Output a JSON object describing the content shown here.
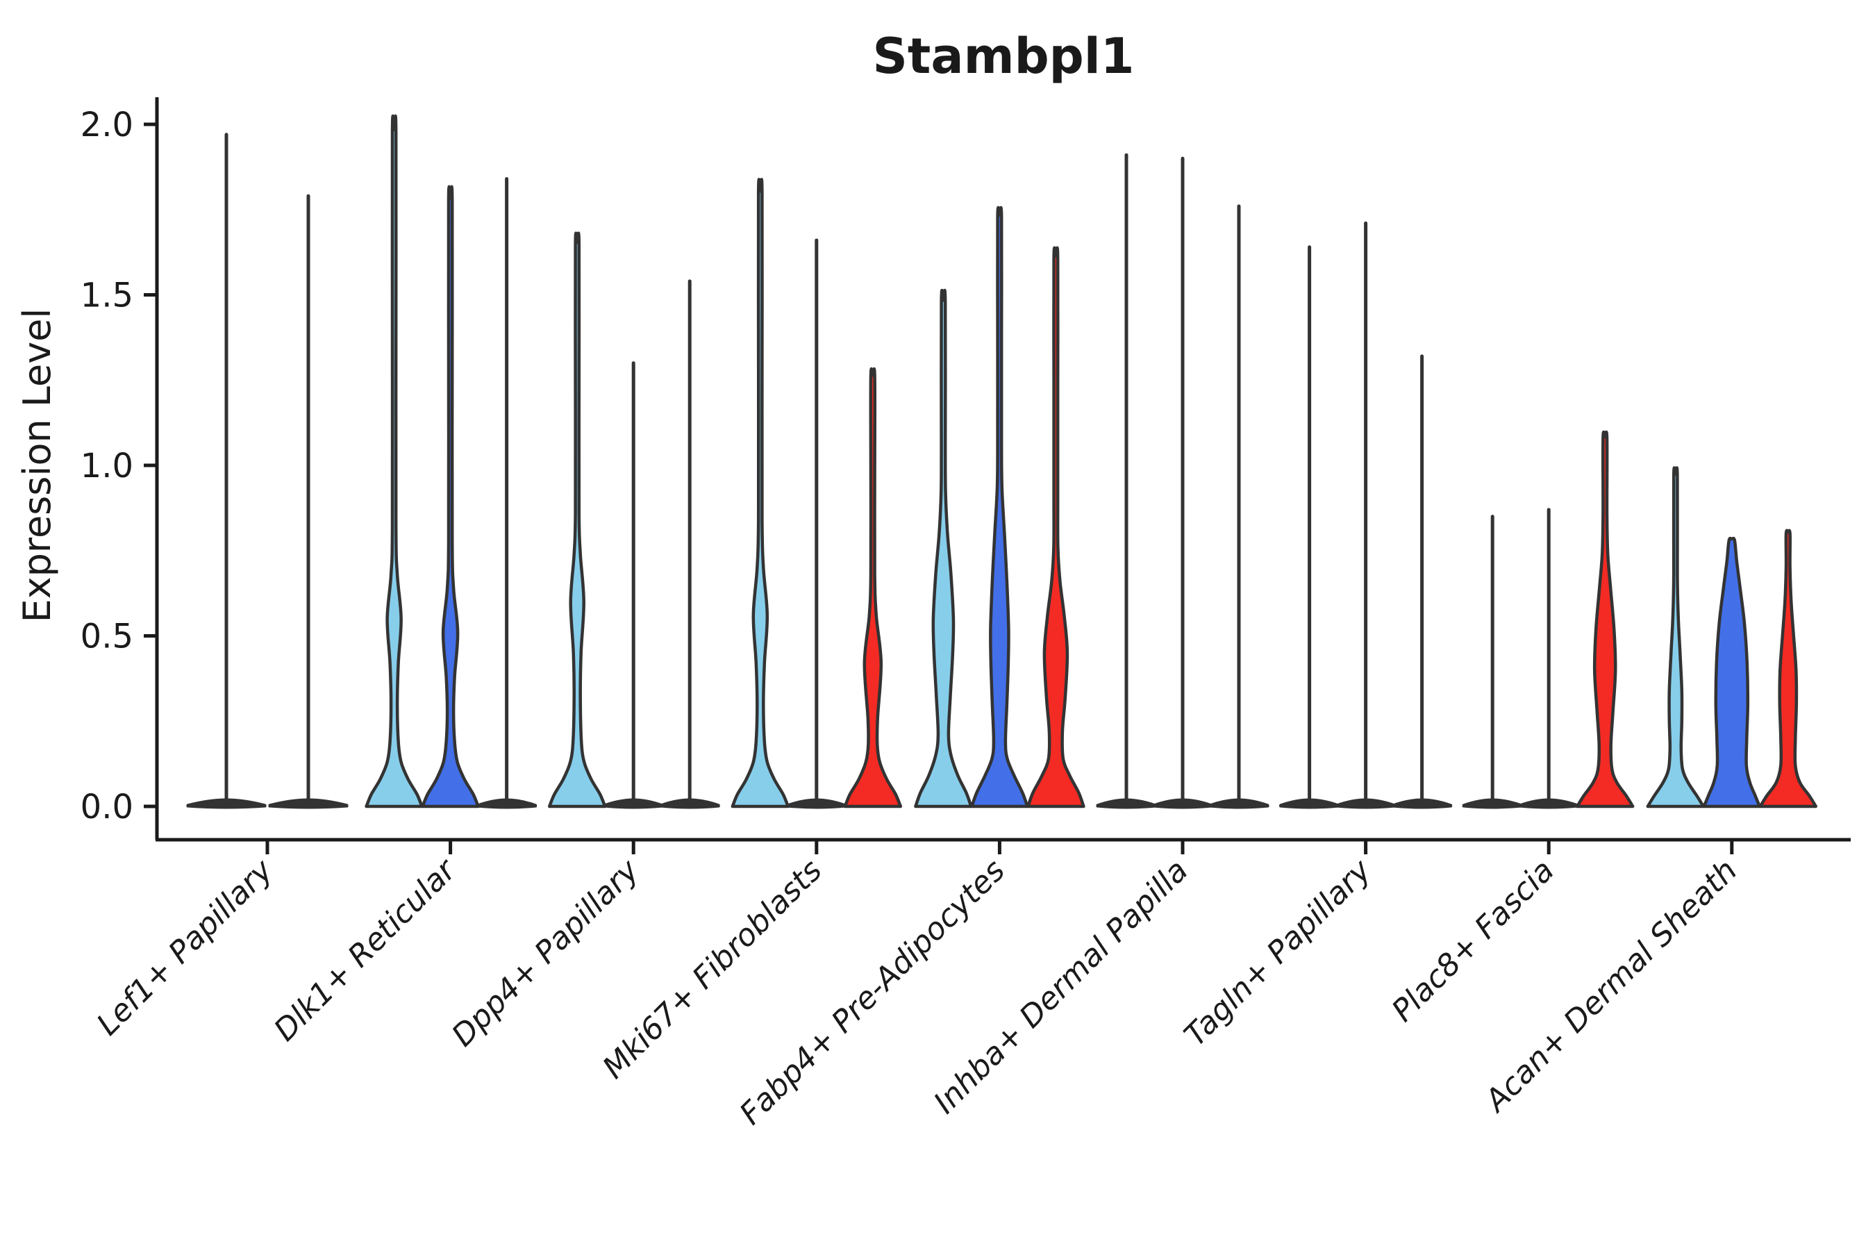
{
  "title": "Stambpl1",
  "y_axis": {
    "label": "Expression Level",
    "tick_labels": [
      "0.0",
      "0.5",
      "1.0",
      "1.5",
      "2.0"
    ],
    "tick_values": [
      0.0,
      0.5,
      1.0,
      1.5,
      2.0
    ]
  },
  "palette": {
    "light_blue": "#87CEEB",
    "dark_blue": "#4370E8",
    "red": "#F32B24",
    "outline": "#333333",
    "axis": "#1a1a1a"
  },
  "chart_data": {
    "type": "violin",
    "title": "Stambpl1",
    "xlabel": "",
    "ylabel": "Expression Level",
    "ylim": [
      0,
      2.0
    ],
    "yticks": [
      0.0,
      0.5,
      1.0,
      1.5,
      2.0
    ],
    "grid": false,
    "legend_position": "none",
    "categories": [
      "Lef1+ Papillary",
      "Dlk1+ Reticular",
      "Dpp4+ Papillary",
      "Mki67+ Fibroblasts",
      "Fabp4+ Pre-Adipocytes",
      "Inhba+ Dermal Papilla",
      "Tagln+ Papillary",
      "Plac8+ Fascia",
      "Acan+ Dermal Sheath"
    ],
    "series_colors": [
      "light_blue",
      "dark_blue",
      "red"
    ],
    "groups": [
      {
        "label": "Lef1+ Papillary",
        "violins": [
          {
            "dx": -59,
            "color": "none",
            "kind": "flat",
            "hw": 56,
            "max": 1.97
          },
          {
            "dx": 59,
            "color": "none",
            "kind": "flat",
            "hw": 56,
            "max": 1.79
          }
        ]
      },
      {
        "label": "Dlk1+ Reticular",
        "violins": [
          {
            "dx": -81,
            "color": "light_blue",
            "kind": "body",
            "max": 1.98,
            "profile": [
              [
                0,
                40
              ],
              [
                0.035,
                33
              ],
              [
                0.08,
                20
              ],
              [
                0.13,
                10
              ],
              [
                0.19,
                6
              ],
              [
                0.3,
                4.5
              ],
              [
                0.42,
                6
              ],
              [
                0.55,
                10
              ],
              [
                0.68,
                4.5
              ],
              [
                0.82,
                2.6
              ],
              [
                1.4,
                2.6
              ],
              [
                1.98,
                2.6
              ]
            ]
          },
          {
            "dx": 0,
            "color": "dark_blue",
            "kind": "body",
            "max": 1.78,
            "profile": [
              [
                0,
                40
              ],
              [
                0.035,
                33
              ],
              [
                0.08,
                20
              ],
              [
                0.13,
                10
              ],
              [
                0.19,
                6
              ],
              [
                0.28,
                4.5
              ],
              [
                0.38,
                6
              ],
              [
                0.51,
                10.5
              ],
              [
                0.64,
                4.5
              ],
              [
                0.78,
                2.6
              ],
              [
                1.3,
                2.6
              ],
              [
                1.78,
                2.6
              ]
            ]
          },
          {
            "dx": 81,
            "color": "none",
            "kind": "flat",
            "hw": 42,
            "max": 1.84
          }
        ]
      },
      {
        "label": "Dpp4+ Papillary",
        "violins": [
          {
            "dx": -81,
            "color": "light_blue",
            "kind": "body",
            "max": 1.65,
            "profile": [
              [
                0,
                40
              ],
              [
                0.035,
                33
              ],
              [
                0.08,
                20
              ],
              [
                0.13,
                10
              ],
              [
                0.19,
                6
              ],
              [
                0.32,
                4.5
              ],
              [
                0.45,
                5.5
              ],
              [
                0.6,
                9.5
              ],
              [
                0.74,
                4.5
              ],
              [
                0.86,
                2.6
              ],
              [
                1.25,
                2.6
              ],
              [
                1.65,
                2.6
              ]
            ]
          },
          {
            "dx": 0,
            "color": "none",
            "kind": "flat",
            "hw": 42,
            "max": 1.3
          },
          {
            "dx": 81,
            "color": "none",
            "kind": "flat",
            "hw": 42,
            "max": 1.54
          }
        ]
      },
      {
        "label": "Mki67+ Fibroblasts",
        "violins": [
          {
            "dx": -81,
            "color": "light_blue",
            "kind": "body",
            "max": 1.8,
            "profile": [
              [
                0,
                40
              ],
              [
                0.035,
                33
              ],
              [
                0.08,
                20
              ],
              [
                0.13,
                10
              ],
              [
                0.19,
                6
              ],
              [
                0.3,
                4.5
              ],
              [
                0.42,
                6
              ],
              [
                0.56,
                10
              ],
              [
                0.7,
                4.5
              ],
              [
                0.84,
                2.6
              ],
              [
                1.3,
                2.6
              ],
              [
                1.8,
                2.6
              ]
            ]
          },
          {
            "dx": 0,
            "color": "none",
            "kind": "flat",
            "hw": 42,
            "max": 1.66
          },
          {
            "dx": 81,
            "color": "red",
            "kind": "body",
            "max": 1.26,
            "profile": [
              [
                0,
                40
              ],
              [
                0.035,
                33
              ],
              [
                0.08,
                20
              ],
              [
                0.13,
                10
              ],
              [
                0.18,
                6.5
              ],
              [
                0.26,
                7
              ],
              [
                0.42,
                12
              ],
              [
                0.56,
                5
              ],
              [
                0.68,
                2.8
              ],
              [
                0.97,
                2.8
              ],
              [
                1.26,
                2.8
              ]
            ]
          }
        ]
      },
      {
        "label": "Fabp4+ Pre-Adipocytes",
        "violins": [
          {
            "dx": -81,
            "color": "light_blue",
            "kind": "body",
            "max": 1.48,
            "profile": [
              [
                0,
                40
              ],
              [
                0.04,
                33
              ],
              [
                0.09,
                21
              ],
              [
                0.15,
                11
              ],
              [
                0.21,
                7.5
              ],
              [
                0.32,
                10
              ],
              [
                0.45,
                13.5
              ],
              [
                0.55,
                14.5
              ],
              [
                0.68,
                11
              ],
              [
                0.8,
                6
              ],
              [
                0.92,
                3.2
              ],
              [
                1.05,
                2.8
              ],
              [
                1.48,
                2.8
              ]
            ]
          },
          {
            "dx": 0,
            "color": "dark_blue",
            "kind": "body",
            "max": 1.73,
            "profile": [
              [
                0,
                40
              ],
              [
                0.04,
                33
              ],
              [
                0.09,
                21
              ],
              [
                0.14,
                11
              ],
              [
                0.19,
                8.5
              ],
              [
                0.3,
                10.5
              ],
              [
                0.42,
                12.5
              ],
              [
                0.52,
                13
              ],
              [
                0.66,
                10.5
              ],
              [
                0.8,
                7
              ],
              [
                0.93,
                3.5
              ],
              [
                1.05,
                2.8
              ],
              [
                1.4,
                2.8
              ],
              [
                1.73,
                2.8
              ]
            ]
          },
          {
            "dx": 81,
            "color": "red",
            "kind": "body",
            "max": 1.61,
            "profile": [
              [
                0,
                40
              ],
              [
                0.04,
                33
              ],
              [
                0.09,
                20
              ],
              [
                0.14,
                10.5
              ],
              [
                0.22,
                9.5
              ],
              [
                0.32,
                13.5
              ],
              [
                0.45,
                16.5
              ],
              [
                0.56,
                12
              ],
              [
                0.66,
                6
              ],
              [
                0.76,
                3
              ],
              [
                0.9,
                2.8
              ],
              [
                1.25,
                2.8
              ],
              [
                1.61,
                2.8
              ]
            ]
          }
        ]
      },
      {
        "label": "Inhba+ Dermal Papilla",
        "violins": [
          {
            "dx": -81,
            "color": "none",
            "kind": "flat",
            "hw": 42,
            "max": 1.91
          },
          {
            "dx": 0,
            "color": "none",
            "kind": "flat",
            "hw": 42,
            "max": 1.9
          },
          {
            "dx": 81,
            "color": "none",
            "kind": "flat",
            "hw": 42,
            "max": 1.76
          }
        ]
      },
      {
        "label": "Tagln+ Papillary",
        "violins": [
          {
            "dx": -81,
            "color": "none",
            "kind": "flat",
            "hw": 42,
            "max": 1.64
          },
          {
            "dx": 0,
            "color": "none",
            "kind": "flat",
            "hw": 42,
            "max": 1.71
          },
          {
            "dx": 81,
            "color": "none",
            "kind": "flat",
            "hw": 42,
            "max": 1.32
          }
        ]
      },
      {
        "label": "Plac8+ Fascia",
        "violins": [
          {
            "dx": -81,
            "color": "none",
            "kind": "flat",
            "hw": 42,
            "max": 0.85
          },
          {
            "dx": 0,
            "color": "none",
            "kind": "flat",
            "hw": 42,
            "max": 0.87
          },
          {
            "dx": 81,
            "color": "red",
            "kind": "body",
            "max": 1.08,
            "profile": [
              [
                0,
                40
              ],
              [
                0.03,
                31
              ],
              [
                0.07,
                17
              ],
              [
                0.11,
                10
              ],
              [
                0.18,
                8.5
              ],
              [
                0.28,
                11.5
              ],
              [
                0.4,
                15
              ],
              [
                0.52,
                13
              ],
              [
                0.64,
                8
              ],
              [
                0.74,
                4
              ],
              [
                0.86,
                2.8
              ],
              [
                1.08,
                2.8
              ]
            ]
          }
        ]
      },
      {
        "label": "Acan+ Dermal Sheath",
        "violins": [
          {
            "dx": -81,
            "color": "light_blue",
            "kind": "body",
            "max": 0.97,
            "profile": [
              [
                0,
                40
              ],
              [
                0.03,
                31
              ],
              [
                0.07,
                18
              ],
              [
                0.11,
                10
              ],
              [
                0.17,
                8
              ],
              [
                0.25,
                9
              ],
              [
                0.34,
                9
              ],
              [
                0.45,
                6.5
              ],
              [
                0.55,
                4
              ],
              [
                0.68,
                2.6
              ],
              [
                0.97,
                2.6
              ]
            ]
          },
          {
            "dx": 0,
            "color": "dark_blue",
            "kind": "body",
            "max": 0.78,
            "profile": [
              [
                0,
                40
              ],
              [
                0.03,
                34
              ],
              [
                0.07,
                26
              ],
              [
                0.12,
                21
              ],
              [
                0.2,
                21.5
              ],
              [
                0.3,
                23
              ],
              [
                0.42,
                22
              ],
              [
                0.54,
                18
              ],
              [
                0.64,
                12
              ],
              [
                0.72,
                7
              ],
              [
                0.78,
                4
              ]
            ]
          },
          {
            "dx": 81,
            "color": "red",
            "kind": "body",
            "max": 0.8,
            "profile": [
              [
                0,
                40
              ],
              [
                0.03,
                31
              ],
              [
                0.07,
                17
              ],
              [
                0.12,
                10.5
              ],
              [
                0.2,
                10.5
              ],
              [
                0.3,
                12
              ],
              [
                0.4,
                11.5
              ],
              [
                0.5,
                8
              ],
              [
                0.6,
                4.5
              ],
              [
                0.7,
                2.8
              ],
              [
                0.8,
                2.8
              ]
            ]
          }
        ]
      }
    ]
  }
}
